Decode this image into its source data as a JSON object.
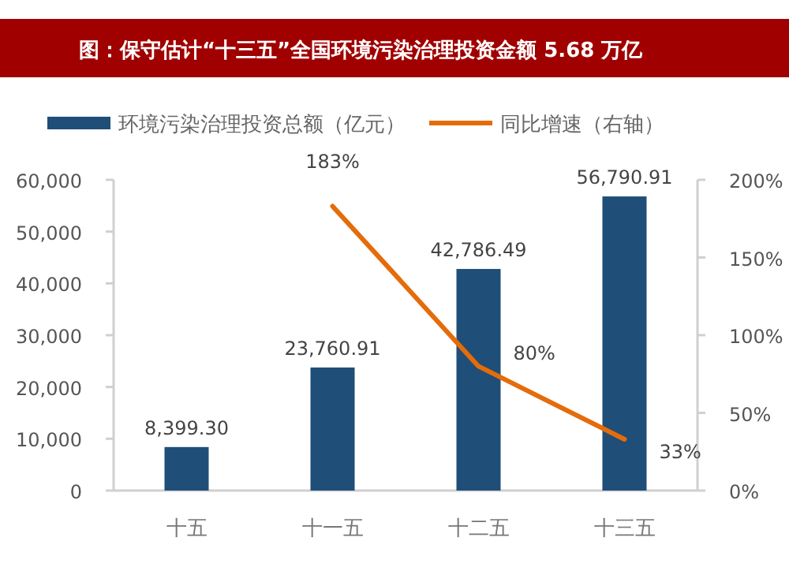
{
  "chart_data": {
    "type": "bar",
    "title": "图：保守估计“十三五”全国环境污染治理投资金额 5.68 万亿",
    "categories": [
      "十五",
      "十一五",
      "十二五",
      "十三五"
    ],
    "series": [
      {
        "name": "环境污染治理投资总额（亿元）",
        "color": "#1f4e79",
        "values": [
          8399.3,
          23760.91,
          42786.49,
          56790.91
        ],
        "value_labels": [
          "8,399.30",
          "23,760.91",
          "42,786.49",
          "56,790.91"
        ]
      },
      {
        "name": "同比增速（右轴）",
        "type": "line",
        "axis": "y2",
        "color": "#e46c0a",
        "values": [
          null,
          183,
          80,
          33
        ],
        "value_labels": [
          null,
          "183%",
          "80%",
          "33%"
        ]
      }
    ],
    "ylim": [
      0,
      60000
    ],
    "yticks": [
      {
        "value": 0,
        "label": "0"
      },
      {
        "value": 10000,
        "label": "10,000"
      },
      {
        "value": 20000,
        "label": "20,000"
      },
      {
        "value": 30000,
        "label": "30,000"
      },
      {
        "value": 40000,
        "label": "40,000"
      },
      {
        "value": 50000,
        "label": "50,000"
      },
      {
        "value": 60000,
        "label": "60,000"
      }
    ],
    "y2lim": [
      0,
      200
    ],
    "y2ticks": [
      {
        "value": 0,
        "label": "0%"
      },
      {
        "value": 50,
        "label": "50%"
      },
      {
        "value": 100,
        "label": "100%"
      },
      {
        "value": 150,
        "label": "150%"
      },
      {
        "value": 200,
        "label": "200%"
      }
    ],
    "legend": "top"
  }
}
